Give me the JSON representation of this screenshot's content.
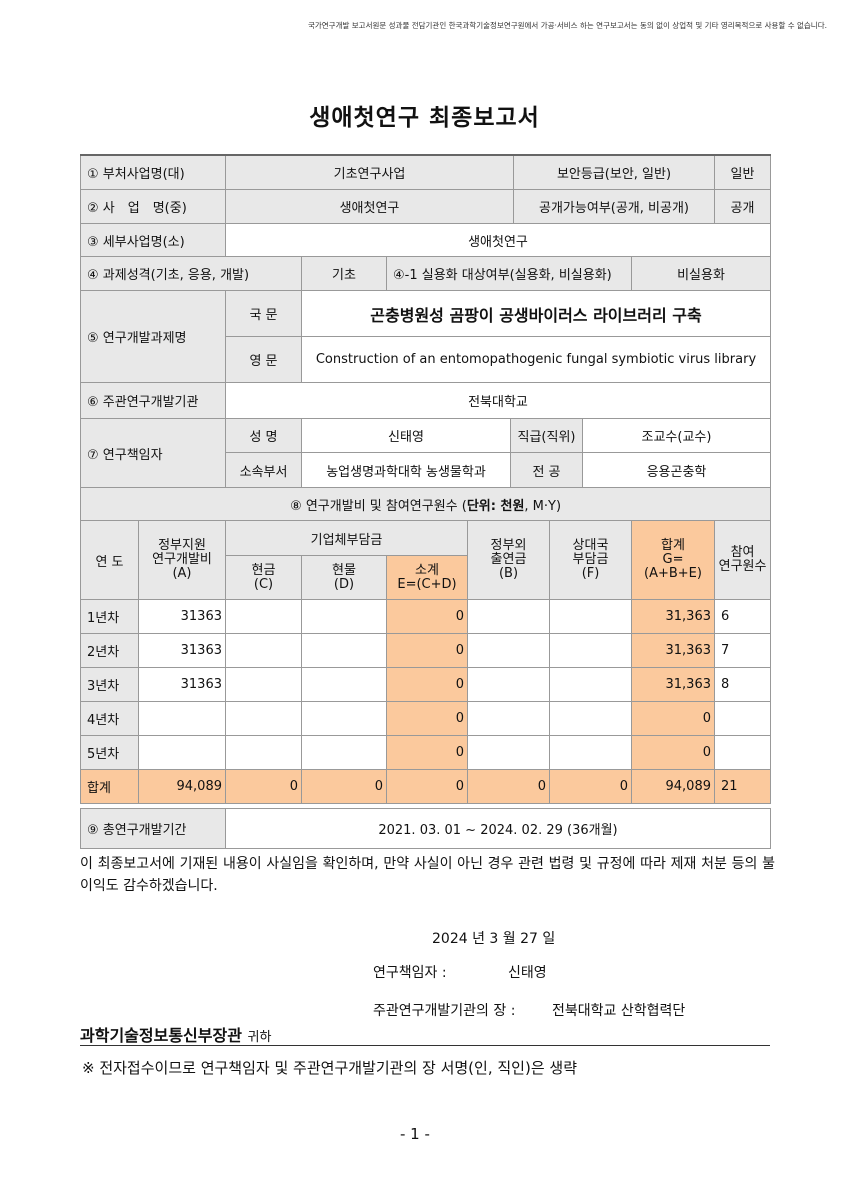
{
  "notice": "국가연구개발 보고서원문 성과물 전담기관인 한국과학기술정보연구원에서 가공·서비스 하는 연구보고서는 동의 없이 상업적 및 기타 영리목적으로 사용할 수 없습니다.",
  "title": "생애첫연구 최종보고서",
  "info": {
    "r1": {
      "label": "① 부처사업명(대)",
      "value": "기초연구사업",
      "label2": "보안등급(보안, 일반)",
      "value2": "일반"
    },
    "r2": {
      "label": "② 사　업　명(중)",
      "value": "생애첫연구",
      "label2": "공개가능여부(공개, 비공개)",
      "value2": "공개"
    },
    "r3": {
      "label": "③ 세부사업명(소)",
      "value": "생애첫연구"
    },
    "r4": {
      "label": "④ 과제성격(기초, 응용, 개발)",
      "value": "기초",
      "label2": "④-1 실용화 대상여부(실용화, 비실용화)",
      "value2": "비실용화"
    },
    "r5": {
      "label": "⑤ 연구개발과제명",
      "ko_label": "국 문",
      "ko": "곤충병원성 곰팡이 공생바이러스 라이브러리 구축",
      "en_label": "영 문",
      "en": "Construction of an entomopathogenic fungal symbiotic virus library"
    },
    "r6": {
      "label": "⑥ 주관연구개발기관",
      "value": "전북대학교"
    },
    "r7": {
      "label": "⑦ 연구책임자",
      "name_label": "성 명",
      "name": "신태영",
      "pos_label": "직급(직위)",
      "pos": "조교수(교수)",
      "dept_label": "소속부서",
      "dept": "농업생명과학대학 농생물학과",
      "major_label": "전 공",
      "major": "응용곤충학"
    }
  },
  "budget": {
    "title": "⑧ 연구개발비 및 참여연구원수 (",
    "unit": "단위: 천원",
    ", ": "",
    "unit_rest": ", M·Y)",
    "headers": {
      "year": "연 도",
      "gov": "정부지원\n연구개발비\n(A)",
      "corp": "기업체부담금",
      "cash": "현금\n(C)",
      "kind": "현물\n(D)",
      "sub": "소계\nE=(C+D)",
      "nongov": "정부외\n출연금\n(B)",
      "partner": "상대국\n부담금\n(F)",
      "total": "합계\nG=(A+B+E)",
      "people": "참여\n연구원수"
    },
    "rows": [
      {
        "year": "1년차",
        "gov": "31363",
        "cash": "",
        "kind": "",
        "sub": "0",
        "nongov": "",
        "partner": "",
        "total": "31,363",
        "people": "6"
      },
      {
        "year": "2년차",
        "gov": "31363",
        "cash": "",
        "kind": "",
        "sub": "0",
        "nongov": "",
        "partner": "",
        "total": "31,363",
        "people": "7"
      },
      {
        "year": "3년차",
        "gov": "31363",
        "cash": "",
        "kind": "",
        "sub": "0",
        "nongov": "",
        "partner": "",
        "total": "31,363",
        "people": "8"
      },
      {
        "year": "4년차",
        "gov": "",
        "cash": "",
        "kind": "",
        "sub": "0",
        "nongov": "",
        "partner": "",
        "total": "0",
        "people": ""
      },
      {
        "year": "5년차",
        "gov": "",
        "cash": "",
        "kind": "",
        "sub": "0",
        "nongov": "",
        "partner": "",
        "total": "0",
        "people": ""
      }
    ],
    "sum": {
      "year": "합계",
      "gov": "94,089",
      "cash": "0",
      "kind": "0",
      "sub": "0",
      "nongov": "0",
      "partner": "0",
      "total": "94,089",
      "people": "21"
    }
  },
  "period": {
    "label": "⑨ 총연구개발기간",
    "value": "2021. 03. 01 ~ 2024. 02. 29 (36개월)"
  },
  "statement": "이 최종보고서에 기재된 내용이 사실임을 확인하며, 만약 사실이 아닌 경우 관련 법령 및 규정에 따라 제재 처분 등의 불이익도 감수하겠습니다.",
  "date": "2024 년 3 월 27 일",
  "pi_label": "연구책임자 :",
  "pi": "신태영",
  "head_label": "주관연구개발기관의 장 :",
  "head": "전북대학교 산학협력단",
  "recipient": "과학기술정보통신부장관",
  "recipient_suffix": "귀하",
  "footnote": "※ 전자접수이므로 연구책임자 및 주관연구개발기관의 장 서명(인, 직인)은 생략",
  "page": "- 1 -"
}
